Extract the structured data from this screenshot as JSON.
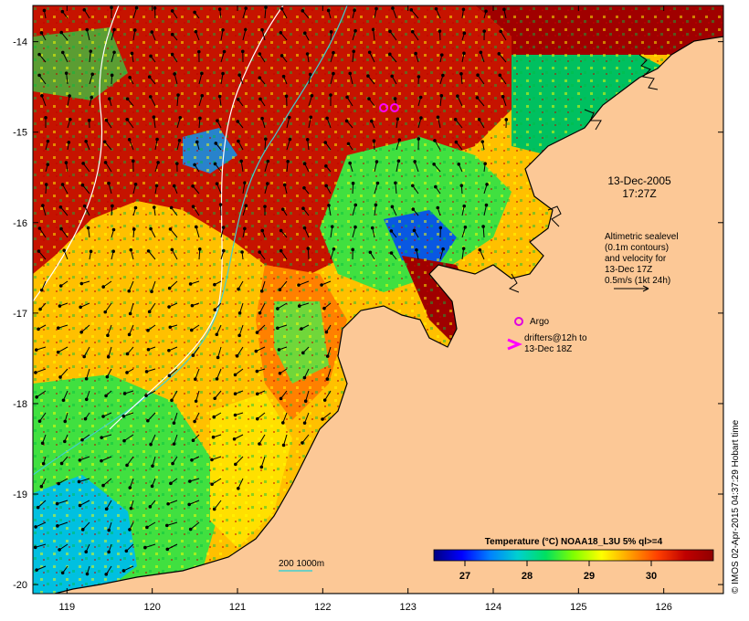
{
  "map": {
    "lon_ticks": [
      "119",
      "120",
      "121",
      "122",
      "123",
      "124",
      "125",
      "126"
    ],
    "lat_ticks": [
      "-14",
      "-15",
      "-16",
      "-17",
      "-18",
      "-19",
      "-20"
    ],
    "lon_range": [
      118.6,
      126.7
    ],
    "lat_range": [
      -20.1,
      -13.6
    ],
    "land_color": "#fcc896",
    "ocean_outside": "#ffffff"
  },
  "annotations": {
    "datetime_line1": "13-Dec-2005",
    "datetime_line2": "17:27Z",
    "altimetry_lines": [
      "Altimetric sealevel",
      "(0.1m contours)",
      "and velocity for",
      "13-Dec 17Z",
      "0.5m/s (1kt 24h)"
    ],
    "argo_label": "Argo",
    "drifters_line1": "drifters@12h to",
    "drifters_line2": "13-Dec 18Z",
    "argo_marker_color": "#e000e0",
    "drifter_marker_color": "#ff00ff",
    "scale_label": "200  1000m",
    "scale_line_color": "#40d0d0"
  },
  "colorbar": {
    "title": "Temperature (°C) NOAA18_L3U 5% ql>=4",
    "ticks": [
      "27",
      "28",
      "29",
      "30"
    ],
    "value_range": [
      26.5,
      31.0
    ],
    "tick_values": [
      27,
      28,
      29,
      30
    ],
    "gradient": [
      "#000080",
      "#0000ff",
      "#0080ff",
      "#00d0d0",
      "#00e060",
      "#80ff00",
      "#ffff00",
      "#ffa000",
      "#ff4000",
      "#c00000",
      "#900000"
    ]
  },
  "watermark": "© IMOS 02-Apr-2015 04:37:29 Hobart time"
}
